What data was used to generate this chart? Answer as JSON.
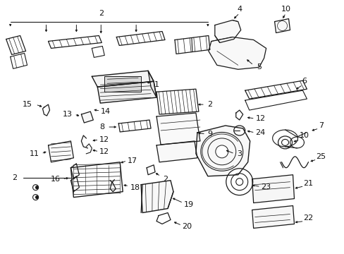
{
  "background_color": "#ffffff",
  "fig_width": 4.89,
  "fig_height": 3.6,
  "dpi": 100,
  "line_color": "#1a1a1a",
  "text_color": "#111111",
  "font_size": 8.0
}
